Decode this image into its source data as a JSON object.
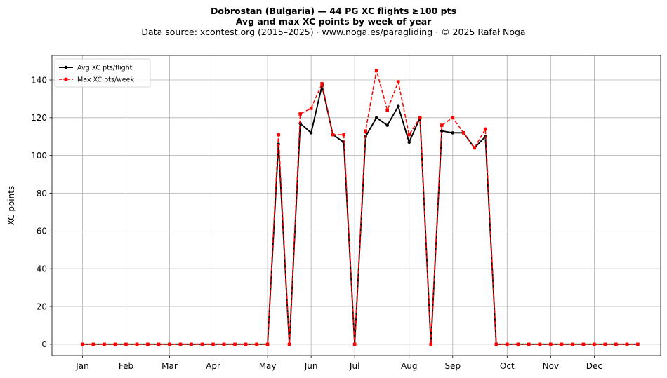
{
  "chart_data": {
    "type": "line",
    "title": "Dobrostan (Bulgaria)  —  44 PG XC flights ≥100 pts",
    "subtitle": "Avg and max XC points by week of year",
    "source": "Data source: xcontest.org (2015–2025)  ·  www.noga.es/paragliding  ·  © 2025 Rafał Noga",
    "xlabel": "",
    "ylabel": "XC points",
    "ylim": [
      -6,
      153
    ],
    "xlim": [
      -1.8,
      54.1
    ],
    "yticks": [
      0,
      20,
      40,
      60,
      80,
      100,
      120,
      140
    ],
    "xticks": [
      {
        "week": 1,
        "label": "Jan"
      },
      {
        "week": 5,
        "label": "Feb"
      },
      {
        "week": 9,
        "label": "Mar"
      },
      {
        "week": 13,
        "label": "Apr"
      },
      {
        "week": 18,
        "label": "May"
      },
      {
        "week": 22,
        "label": "Jun"
      },
      {
        "week": 26,
        "label": "Jul"
      },
      {
        "week": 31,
        "label": "Aug"
      },
      {
        "week": 35,
        "label": "Sep"
      },
      {
        "week": 40,
        "label": "Oct"
      },
      {
        "week": 44,
        "label": "Nov"
      },
      {
        "week": 48,
        "label": "Dec"
      }
    ],
    "grid": true,
    "legend_position": "top-left",
    "x": [
      1,
      2,
      3,
      4,
      5,
      6,
      7,
      8,
      9,
      10,
      11,
      12,
      13,
      14,
      15,
      16,
      17,
      18,
      19,
      20,
      21,
      22,
      23,
      24,
      25,
      26,
      27,
      28,
      29,
      30,
      31,
      32,
      33,
      34,
      35,
      36,
      37,
      38,
      39,
      40,
      41,
      42,
      43,
      44,
      45,
      46,
      47,
      48,
      49,
      50,
      51,
      52
    ],
    "series": [
      {
        "name": "Avg XC pts/flight",
        "color": "#000000",
        "style": "solid-circle",
        "values": [
          0,
          0,
          0,
          0,
          0,
          0,
          0,
          0,
          0,
          0,
          0,
          0,
          0,
          0,
          0,
          0,
          0,
          0,
          106,
          0,
          117,
          112,
          137,
          111,
          107,
          0,
          110,
          120,
          116,
          126,
          107,
          120,
          0,
          113,
          112,
          112,
          104,
          110,
          0,
          0,
          0,
          0,
          0,
          0,
          0,
          0,
          0,
          0,
          0,
          0,
          0,
          0
        ]
      },
      {
        "name": "Max XC pts/week",
        "color": "#ff0000",
        "style": "dashed-square",
        "values": [
          0,
          0,
          0,
          0,
          0,
          0,
          0,
          0,
          0,
          0,
          0,
          0,
          0,
          0,
          0,
          0,
          0,
          0,
          111,
          0,
          122,
          125,
          138,
          111,
          111,
          0,
          113,
          145,
          124,
          139,
          111,
          120,
          0,
          116,
          120,
          112,
          104,
          114,
          0,
          0,
          0,
          0,
          0,
          0,
          0,
          0,
          0,
          0,
          0,
          0,
          0,
          0
        ]
      }
    ]
  }
}
